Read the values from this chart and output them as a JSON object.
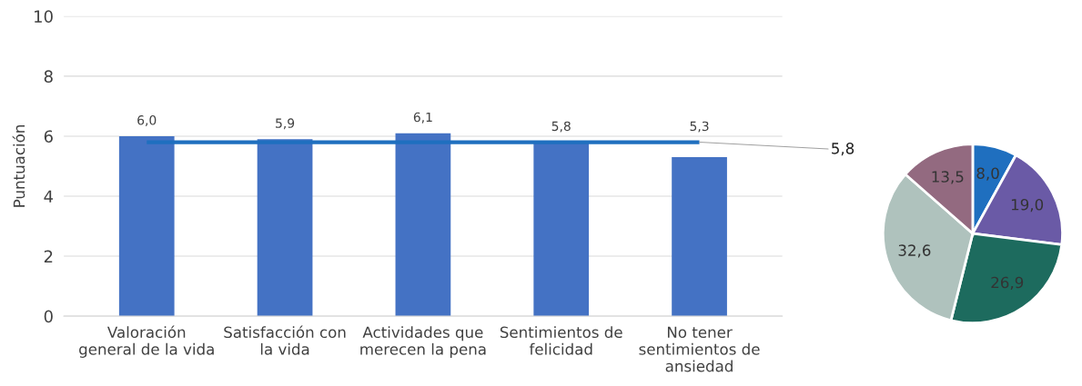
{
  "chart_data": [
    {
      "type": "bar",
      "ylabel": "Puntuación",
      "categories": [
        "Valoración\ngeneral de la vida",
        "Satisfacción con\nla vida",
        "Actividades que\nmerecen la pena",
        "Sentimientos de\nfelicidad",
        "No tener\nsentimientos de\nansiedad"
      ],
      "values": [
        6.0,
        5.9,
        6.1,
        5.8,
        5.3
      ],
      "value_labels": [
        "6,0",
        "5,9",
        "6,1",
        "5,8",
        "5,3"
      ],
      "color": "#4472c4",
      "ylim": [
        0,
        10
      ],
      "yticks": [
        0,
        2,
        4,
        6,
        8,
        10
      ],
      "grid": "y",
      "ref_lines": [
        {
          "axis": "y",
          "value": 5.8,
          "label": "5,8",
          "color": "#1f6fbf"
        }
      ]
    },
    {
      "type": "pie",
      "categories": [
        null,
        null,
        null,
        null,
        null
      ],
      "values": [
        8.0,
        19.0,
        26.9,
        32.6,
        13.5
      ],
      "value_labels": [
        "8,0",
        "19,0",
        "26,9",
        "32,6",
        "13,5"
      ],
      "colors": [
        "#1f6fbf",
        "#6a5aa6",
        "#1d6b5e",
        "#afc2bd",
        "#936a80"
      ]
    }
  ]
}
